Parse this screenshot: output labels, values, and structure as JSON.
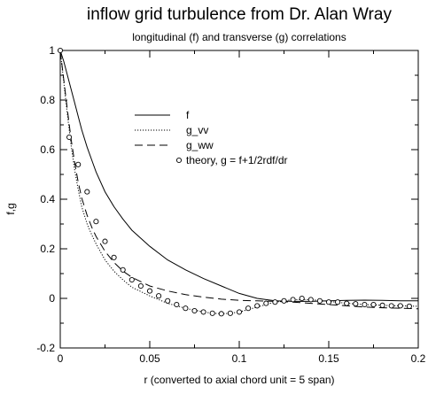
{
  "chart_data": {
    "type": "line",
    "title": "inflow grid turbulence from Dr. Alan Wray",
    "subtitle": "longitudinal (f) and transverse (g) correlations",
    "xlabel": "r (converted to axial chord unit = 5 span)",
    "ylabel": "f,g",
    "xlim": [
      0,
      0.2
    ],
    "ylim": [
      -0.2,
      1.0
    ],
    "x_ticks": [
      "0",
      "0.05",
      "0.1",
      "0.15",
      "0.2"
    ],
    "y_ticks": [
      "-0.2",
      "0",
      "0.2",
      "0.4",
      "0.6",
      "0.8",
      "1"
    ],
    "grid": false,
    "legend_position": "upper-center",
    "series": [
      {
        "name": "f",
        "style": "solid",
        "x": [
          0,
          0.002,
          0.004,
          0.006,
          0.008,
          0.01,
          0.012,
          0.015,
          0.018,
          0.02,
          0.025,
          0.03,
          0.035,
          0.04,
          0.05,
          0.06,
          0.07,
          0.08,
          0.09,
          0.1,
          0.11,
          0.12,
          0.13,
          0.14,
          0.15,
          0.16,
          0.17,
          0.18,
          0.19,
          0.2
        ],
        "y": [
          1.0,
          0.955,
          0.9,
          0.845,
          0.79,
          0.735,
          0.68,
          0.61,
          0.55,
          0.51,
          0.43,
          0.37,
          0.32,
          0.275,
          0.21,
          0.155,
          0.115,
          0.08,
          0.05,
          0.02,
          0.0,
          -0.01,
          -0.012,
          -0.012,
          -0.01,
          -0.008,
          -0.007,
          -0.008,
          -0.01,
          -0.01
        ]
      },
      {
        "name": "g_vv",
        "style": "dotted",
        "x": [
          0,
          0.002,
          0.004,
          0.006,
          0.008,
          0.01,
          0.012,
          0.015,
          0.018,
          0.02,
          0.025,
          0.03,
          0.035,
          0.04,
          0.05,
          0.06,
          0.07,
          0.08,
          0.085,
          0.09,
          0.095,
          0.1,
          0.11,
          0.12,
          0.13,
          0.14,
          0.15,
          0.16,
          0.17,
          0.18,
          0.19,
          0.2
        ],
        "y": [
          1.0,
          0.87,
          0.74,
          0.62,
          0.52,
          0.44,
          0.37,
          0.3,
          0.25,
          0.22,
          0.155,
          0.11,
          0.075,
          0.045,
          0.01,
          -0.02,
          -0.04,
          -0.055,
          -0.06,
          -0.062,
          -0.06,
          -0.055,
          -0.035,
          -0.015,
          -0.005,
          -0.005,
          -0.012,
          -0.02,
          -0.025,
          -0.028,
          -0.03,
          -0.032
        ]
      },
      {
        "name": "g_ww",
        "style": "dashed",
        "x": [
          0,
          0.002,
          0.004,
          0.006,
          0.008,
          0.01,
          0.012,
          0.015,
          0.018,
          0.02,
          0.025,
          0.03,
          0.035,
          0.04,
          0.05,
          0.06,
          0.07,
          0.08,
          0.09,
          0.1,
          0.11,
          0.12,
          0.13,
          0.14,
          0.15,
          0.16,
          0.17,
          0.18,
          0.19,
          0.2
        ],
        "y": [
          1.0,
          0.88,
          0.76,
          0.645,
          0.55,
          0.47,
          0.405,
          0.335,
          0.28,
          0.25,
          0.19,
          0.145,
          0.11,
          0.085,
          0.05,
          0.03,
          0.015,
          0.005,
          -0.003,
          -0.008,
          -0.01,
          -0.012,
          -0.015,
          -0.02,
          -0.025,
          -0.03,
          -0.035,
          -0.038,
          -0.04,
          -0.042
        ]
      },
      {
        "name": "theory, g = f+1/2rdf/dr",
        "style": "markers",
        "marker": "open-circle",
        "x": [
          0.0,
          0.005,
          0.01,
          0.015,
          0.02,
          0.025,
          0.03,
          0.035,
          0.04,
          0.045,
          0.05,
          0.055,
          0.06,
          0.065,
          0.07,
          0.075,
          0.08,
          0.085,
          0.09,
          0.095,
          0.1,
          0.105,
          0.11,
          0.115,
          0.12,
          0.125,
          0.13,
          0.135,
          0.14,
          0.145,
          0.15,
          0.155,
          0.16,
          0.165,
          0.17,
          0.175,
          0.18,
          0.185,
          0.19,
          0.195
        ],
        "y": [
          1.0,
          0.65,
          0.54,
          0.43,
          0.31,
          0.23,
          0.165,
          0.115,
          0.075,
          0.05,
          0.03,
          0.01,
          -0.01,
          -0.025,
          -0.04,
          -0.05,
          -0.055,
          -0.06,
          -0.062,
          -0.06,
          -0.055,
          -0.04,
          -0.03,
          -0.02,
          -0.015,
          -0.01,
          -0.005,
          0.0,
          -0.005,
          -0.01,
          -0.015,
          -0.015,
          -0.02,
          -0.022,
          -0.025,
          -0.025,
          -0.028,
          -0.03,
          -0.03,
          -0.032
        ]
      }
    ]
  }
}
